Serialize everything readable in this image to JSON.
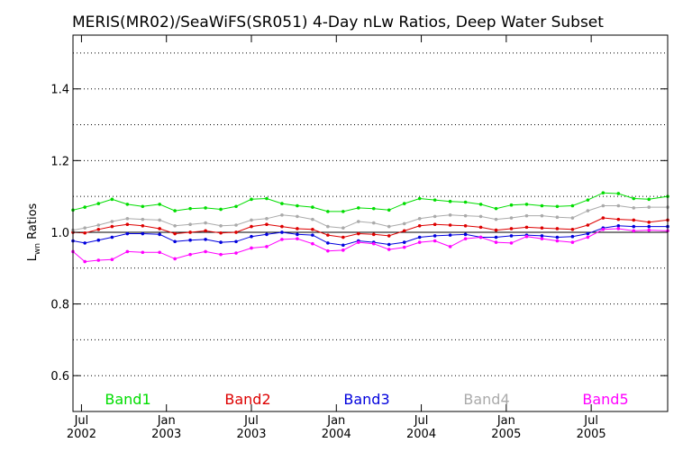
{
  "chart_data": {
    "type": "line",
    "title": "MERIS(MR02)/SeaWiFS(SR051) 4-Day nLw Ratios, Deep Water Subset",
    "ylabel_main": "L",
    "ylabel_sub": "wn",
    "ylabel_rest": " Ratios",
    "ylim": [
      0.5,
      1.55
    ],
    "xlim": [
      2002.45,
      2005.95
    ],
    "grid": "horizontal dotted",
    "reference_line": 1.0,
    "yticks": [
      {
        "value": 0.6,
        "label": "0.6"
      },
      {
        "value": 0.8,
        "label": "0.8"
      },
      {
        "value": 1.0,
        "label": "1.0"
      },
      {
        "value": 1.2,
        "label": "1.2"
      },
      {
        "value": 1.4,
        "label": "1.4"
      }
    ],
    "ygrid": [
      0.6,
      0.7,
      0.8,
      0.9,
      1.0,
      1.1,
      1.2,
      1.3,
      1.4,
      1.5
    ],
    "xticks": [
      {
        "value": 2002.5,
        "month": "Jul",
        "year": "2002"
      },
      {
        "value": 2003.0,
        "month": "Jan",
        "year": "2003"
      },
      {
        "value": 2003.5,
        "month": "Jul",
        "year": "2003"
      },
      {
        "value": 2004.0,
        "month": "Jan",
        "year": "2004"
      },
      {
        "value": 2004.5,
        "month": "Jul",
        "year": "2004"
      },
      {
        "value": 2005.0,
        "month": "Jan",
        "year": "2005"
      },
      {
        "value": 2005.5,
        "month": "Jul",
        "year": "2005"
      }
    ],
    "x": [
      2002.45,
      2002.52,
      2002.6,
      2002.68,
      2002.77,
      2002.86,
      2002.96,
      2003.05,
      2003.14,
      2003.23,
      2003.32,
      2003.41,
      2003.5,
      2003.59,
      2003.68,
      2003.77,
      2003.86,
      2003.95,
      2004.04,
      2004.13,
      2004.22,
      2004.31,
      2004.4,
      2004.49,
      2004.58,
      2004.67,
      2004.76,
      2004.85,
      2004.94,
      2005.03,
      2005.12,
      2005.21,
      2005.3,
      2005.39,
      2005.48,
      2005.57,
      2005.66,
      2005.75,
      2005.84,
      2005.95
    ],
    "series": [
      {
        "name": "Band1",
        "color": "#00dd00",
        "values": [
          1.062,
          1.07,
          1.08,
          1.092,
          1.078,
          1.072,
          1.078,
          1.06,
          1.066,
          1.068,
          1.064,
          1.072,
          1.092,
          1.094,
          1.08,
          1.074,
          1.07,
          1.058,
          1.058,
          1.068,
          1.066,
          1.062,
          1.08,
          1.094,
          1.09,
          1.086,
          1.084,
          1.078,
          1.066,
          1.076,
          1.078,
          1.074,
          1.072,
          1.074,
          1.09,
          1.11,
          1.108,
          1.094,
          1.092,
          1.1
        ]
      },
      {
        "name": "Band2",
        "color": "#dd0000",
        "values": [
          1.0,
          0.998,
          1.008,
          1.016,
          1.022,
          1.018,
          1.01,
          0.996,
          1.0,
          1.004,
          0.998,
          1.0,
          1.016,
          1.022,
          1.016,
          1.01,
          1.008,
          0.992,
          0.986,
          0.996,
          0.994,
          0.99,
          1.004,
          1.018,
          1.022,
          1.02,
          1.018,
          1.014,
          1.006,
          1.01,
          1.014,
          1.012,
          1.01,
          1.008,
          1.02,
          1.04,
          1.036,
          1.034,
          1.028,
          1.034
        ]
      },
      {
        "name": "Band3",
        "color": "#0000dd",
        "values": [
          0.976,
          0.97,
          0.978,
          0.986,
          0.996,
          0.996,
          0.994,
          0.974,
          0.978,
          0.98,
          0.972,
          0.974,
          0.988,
          0.994,
          1.0,
          0.994,
          0.992,
          0.97,
          0.964,
          0.976,
          0.972,
          0.966,
          0.972,
          0.986,
          0.99,
          0.992,
          0.994,
          0.986,
          0.986,
          0.99,
          0.992,
          0.99,
          0.986,
          0.988,
          0.996,
          1.012,
          1.018,
          1.016,
          1.016,
          1.016
        ]
      },
      {
        "name": "Band4",
        "color": "#aaaaaa",
        "values": [
          1.006,
          1.012,
          1.02,
          1.03,
          1.038,
          1.036,
          1.034,
          1.018,
          1.022,
          1.026,
          1.018,
          1.02,
          1.034,
          1.038,
          1.048,
          1.044,
          1.036,
          1.016,
          1.012,
          1.03,
          1.026,
          1.016,
          1.024,
          1.038,
          1.044,
          1.048,
          1.046,
          1.044,
          1.036,
          1.04,
          1.046,
          1.046,
          1.042,
          1.04,
          1.06,
          1.074,
          1.074,
          1.068,
          1.07,
          1.07
        ]
      },
      {
        "name": "Band5",
        "color": "#ff00ff",
        "values": [
          0.946,
          0.918,
          0.922,
          0.924,
          0.946,
          0.944,
          0.944,
          0.926,
          0.938,
          0.946,
          0.938,
          0.942,
          0.956,
          0.96,
          0.98,
          0.982,
          0.968,
          0.948,
          0.95,
          0.972,
          0.968,
          0.952,
          0.958,
          0.972,
          0.976,
          0.96,
          0.982,
          0.986,
          0.972,
          0.97,
          0.988,
          0.982,
          0.976,
          0.972,
          0.986,
          1.008,
          1.01,
          1.004,
          1.006,
          1.004
        ]
      }
    ]
  }
}
